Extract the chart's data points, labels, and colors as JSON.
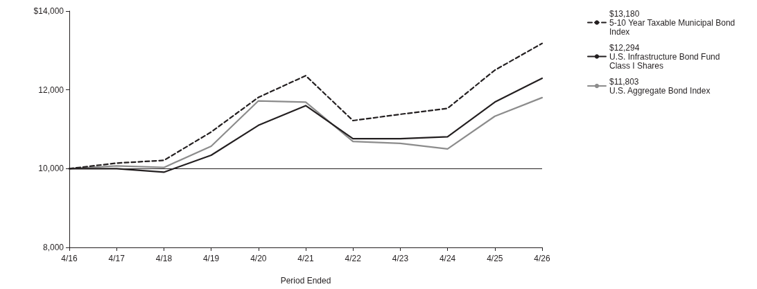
{
  "chart_data": {
    "type": "line",
    "xlabel": "Period Ended",
    "categories": [
      "4/16",
      "4/17",
      "4/18",
      "4/19",
      "4/20",
      "4/21",
      "4/22",
      "4/23",
      "4/24",
      "4/25",
      "4/26"
    ],
    "series": [
      {
        "name": "5-10 Year Taxable Municipal Bond Index",
        "color": "#231f20",
        "line_style": "dashed",
        "values": [
          10000,
          10140,
          10210,
          10930,
          11810,
          12360,
          11220,
          11380,
          11530,
          12500,
          13180
        ]
      },
      {
        "name": "U.S. Infrastructure Bond Fund Class I Shares",
        "color": "#231f20",
        "line_style": "solid",
        "values": [
          10000,
          10000,
          9910,
          10340,
          11100,
          11600,
          10760,
          10760,
          10810,
          11690,
          12294
        ]
      },
      {
        "name": "U.S. Aggregate Bond Index",
        "color": "#8c8c8c",
        "line_style": "solid",
        "values": [
          10000,
          10070,
          10030,
          10570,
          11720,
          11690,
          10690,
          10640,
          10500,
          11330,
          11803
        ]
      }
    ],
    "annotations": [
      "$13,180",
      "$12,294",
      "$11,803"
    ],
    "ylim": [
      8000,
      14000
    ],
    "yticks": [
      {
        "value": 8000,
        "label": "8,000"
      },
      {
        "value": 10000,
        "label": "10,000"
      },
      {
        "value": 12000,
        "label": "12,000"
      },
      {
        "value": 14000,
        "label": "$14,000"
      }
    ],
    "ref_lines": [
      {
        "axis": "y",
        "value": 10000,
        "color": "#231f20"
      }
    ],
    "grid": false,
    "legend": "right",
    "marker": "none"
  }
}
